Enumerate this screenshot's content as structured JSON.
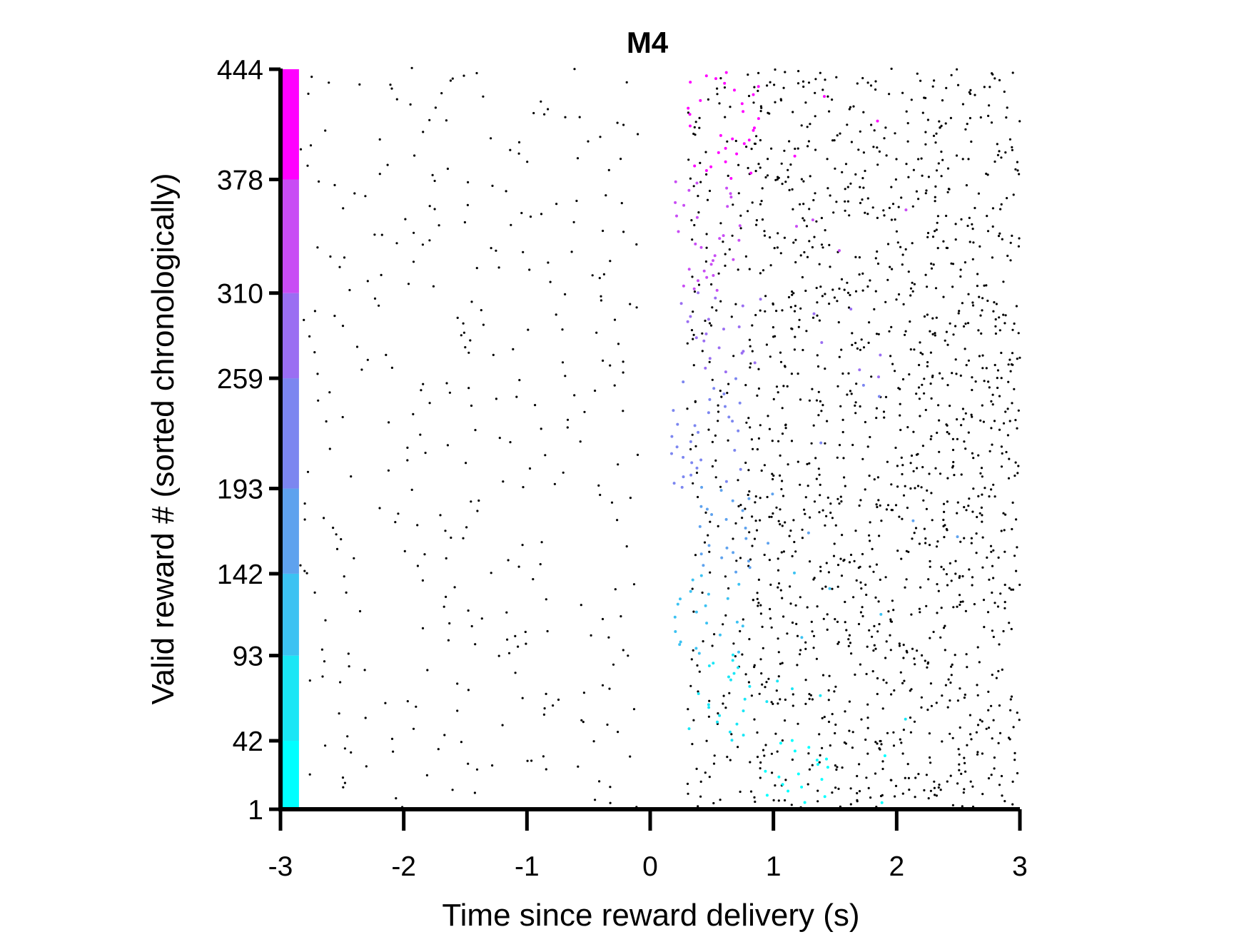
{
  "chart_data": {
    "type": "scatter",
    "title": "M4",
    "xlabel": "Time since reward delivery (s)",
    "ylabel": "Valid reward # (sorted chronologically)",
    "xlim": [
      -3,
      3
    ],
    "ylim": [
      1,
      444
    ],
    "x_ticks": [
      -3,
      -2,
      -1,
      0,
      1,
      2,
      3
    ],
    "x_tick_labels": [
      "-3",
      "-2",
      "-1",
      "0",
      "1",
      "2",
      "3"
    ],
    "y_ticks": [
      1,
      42,
      93,
      142,
      193,
      259,
      310,
      378,
      444
    ],
    "y_tick_labels": [
      "1",
      "42",
      "93",
      "142",
      "193",
      "259",
      "310",
      "378",
      "444"
    ],
    "grid": false,
    "legend": "none",
    "color_bar": {
      "position": "left edge, x = -3 to -2.85",
      "segments": [
        {
          "from": 1,
          "to": 42,
          "color": "#00ffff"
        },
        {
          "from": 42,
          "to": 93,
          "color": "#1ae6f5"
        },
        {
          "from": 93,
          "to": 142,
          "color": "#3cc2f2"
        },
        {
          "from": 142,
          "to": 193,
          "color": "#5ea2ee"
        },
        {
          "from": 193,
          "to": 259,
          "color": "#7c86f0"
        },
        {
          "from": 259,
          "to": 310,
          "color": "#9a6ef2"
        },
        {
          "from": 310,
          "to": 378,
          "color": "#c84cf4"
        },
        {
          "from": 378,
          "to": 444,
          "color": "#ff00ff"
        }
      ]
    },
    "series": [
      {
        "marker_color": "#000000",
        "description_of_values": "licks: sparse for t < 0, dense for t > 0.6",
        "density_profile": [
          {
            "x_from": -2.85,
            "x_to": -0.1,
            "rate": 0.18
          },
          {
            "x_from": 0.3,
            "x_to": 0.8,
            "rate": 0.5
          },
          {
            "x_from": 0.8,
            "x_to": 3.0,
            "rate": 1.0
          }
        ]
      },
      {
        "marker_color": "row color band",
        "description_of_values": "first lick after reward per trial, colored by trial band",
        "x_mean_by_band": [
          {
            "from": 1,
            "to": 42,
            "x_mean": 1.2
          },
          {
            "from": 42,
            "to": 93,
            "x_mean": 0.55
          },
          {
            "from": 93,
            "to": 142,
            "x_mean": 0.5
          },
          {
            "from": 142,
            "to": 193,
            "x_mean": 0.7
          },
          {
            "from": 193,
            "to": 259,
            "x_mean": 0.45
          },
          {
            "from": 259,
            "to": 310,
            "x_mean": 0.55
          },
          {
            "from": 310,
            "to": 378,
            "x_mean": 0.5
          },
          {
            "from": 378,
            "to": 444,
            "x_mean": 0.6
          }
        ]
      }
    ]
  }
}
